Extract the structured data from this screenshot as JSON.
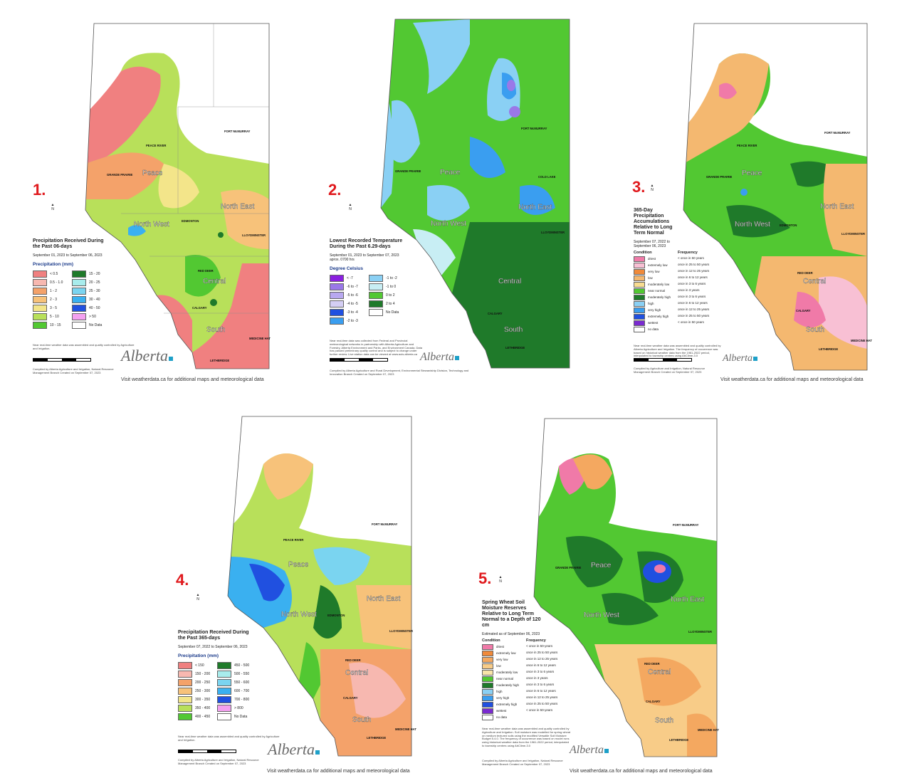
{
  "footer_text": "Visit weatherdata.ca for additional maps and meteorological data",
  "logo_text": "Alberta",
  "regions": [
    "Peace",
    "North West",
    "North East",
    "Central",
    "South"
  ],
  "cities": [
    "PEACE RIVER",
    "GRANDE PRAIRIE",
    "FORT McMURRAY",
    "EDMONTON",
    "LLOYDMINSTER",
    "RED DEER",
    "CALGARY",
    "MEDICINE HAT",
    "LETHBRIDGE",
    "COLD LAKE"
  ],
  "panels": [
    {
      "number": "1.",
      "title": "Precipitation Received During the Past 06-days",
      "dates": "September 01, 2023 to September 06, 2023",
      "legend_title": "Precipitation (mm)",
      "legend": [
        {
          "label": "< 0.5",
          "color": "#f08080"
        },
        {
          "label": "0.5 - 1.0",
          "color": "#f7b8b0"
        },
        {
          "label": "1 - 2",
          "color": "#f4a26a"
        },
        {
          "label": "2 - 3",
          "color": "#f7c27a"
        },
        {
          "label": "3 - 5",
          "color": "#f3e58a"
        },
        {
          "label": "5 - 10",
          "color": "#b8e05a"
        },
        {
          "label": "10 - 15",
          "color": "#52c832"
        },
        {
          "label": "15 - 20",
          "color": "#1f7a2a"
        },
        {
          "label": "20 - 25",
          "color": "#a8ecec"
        },
        {
          "label": "25 - 30",
          "color": "#7ad4f0"
        },
        {
          "label": "30 - 40",
          "color": "#3ab0f0"
        },
        {
          "label": "40 - 50",
          "color": "#2050e0"
        },
        {
          "label": "> 50",
          "color": "#f4a0f0"
        },
        {
          "label": "No Data",
          "color": "#ffffff"
        }
      ],
      "note": "Near real-time weather data was assembled and quality controlled by Agriculture and Irrigation.",
      "credit": "Compiled by Alberta Agriculture and Irrigation, Natural Resource Management Branch Created on September 07, 2023"
    },
    {
      "number": "2.",
      "title": "Lowest Recorded Temperature During the Past 6.29-days",
      "dates": "September 01, 2023 to September 07, 2023 aprox. 0700 hrs",
      "legend_title": "Degree Celsius",
      "legend": [
        {
          "label": "< -7",
          "color": "#8a20e0"
        },
        {
          "label": "-6 to -7",
          "color": "#9a78e8"
        },
        {
          "label": "-5 to -6",
          "color": "#b8a8f0"
        },
        {
          "label": "-4 to -5",
          "color": "#d4cef4"
        },
        {
          "label": "-3 to -4",
          "color": "#2050e0"
        },
        {
          "label": "-2 to -3",
          "color": "#3a9ef0"
        },
        {
          "label": "-1 to -2",
          "color": "#8ad0f4"
        },
        {
          "label": "-1 to 0",
          "color": "#c8eef4"
        },
        {
          "label": "0 to 2",
          "color": "#52c832"
        },
        {
          "label": "2 to 4",
          "color": "#1f7a2a"
        },
        {
          "label": "No Data",
          "color": "#ffffff"
        }
      ],
      "note": "Near real-time data was collected from Federal and Provincial meteorological networks in partnership with Alberta Agriculture and Forestry, Alberta Environment and Parks, and Environment Canada. Data has passed preliminary quality control and is subject to change under further review. Live station data can be viewed at www.acis.alberta.ca",
      "credit": "Compiled by Alberta Agriculture and Rural Development, Environmental Stewardship Division, Technology and Innovation Branch Created on September 07, 2023"
    },
    {
      "number": "3.",
      "title": "365-Day Precipitation Accumulations Relative to Long Term Normal",
      "dates": "September 07, 2022 to September 06, 2023",
      "legend_condition": "Condition",
      "legend_frequency": "Frequency",
      "legend": [
        {
          "label": "driest",
          "freq": "< once in 50 years",
          "color": "#f07aa8"
        },
        {
          "label": "extremely low",
          "freq": "once in 25 to 50 years",
          "color": "#f8c0d4"
        },
        {
          "label": "very low",
          "freq": "once in 12 to 25 years",
          "color": "#f08a3a"
        },
        {
          "label": "low",
          "freq": "once in 6 to 12 years",
          "color": "#f4b870"
        },
        {
          "label": "moderately low",
          "freq": "once in 3 to 6 years",
          "color": "#f8dc90"
        },
        {
          "label": "near normal",
          "freq": "once in 3 years",
          "color": "#52c832"
        },
        {
          "label": "moderately high",
          "freq": "once in 3 to 6 years",
          "color": "#1f7a2a"
        },
        {
          "label": "high",
          "freq": "once in 6 to 12 years",
          "color": "#8ad0f4"
        },
        {
          "label": "very high",
          "freq": "once in 12 to 25 years",
          "color": "#3a9ef0"
        },
        {
          "label": "extremely high",
          "freq": "once in 25 to 50 years",
          "color": "#2050e0"
        },
        {
          "label": "wettest",
          "freq": "< once in 50 years",
          "color": "#7a2ad0"
        },
        {
          "label": "no data",
          "freq": "",
          "color": "#ffffff"
        }
      ],
      "note": "Near real-time weather data was assembled and quality controlled by Alberta Agriculture and Irrigation. The frequency of occurrence was based on historical weather data from the 1961-2022 period, interpolated to township centres using AbClime-3.0",
      "credit": "Compiled by Agriculture and Irrigation, Natural Resource Management Branch Created on September 07, 2023"
    },
    {
      "number": "4.",
      "title": "Precipitation Received During the Past 365-days",
      "dates": "September 07, 2022 to September 06, 2023",
      "legend_title": "Precipitation (mm)",
      "legend": [
        {
          "label": "< 150",
          "color": "#f08080"
        },
        {
          "label": "150 - 200",
          "color": "#f7b8b0"
        },
        {
          "label": "200 - 250",
          "color": "#f4a26a"
        },
        {
          "label": "250 - 300",
          "color": "#f7c27a"
        },
        {
          "label": "300 - 350",
          "color": "#f3e58a"
        },
        {
          "label": "350 - 400",
          "color": "#b8e05a"
        },
        {
          "label": "400 - 450",
          "color": "#52c832"
        },
        {
          "label": "450 - 500",
          "color": "#1f7a2a"
        },
        {
          "label": "500 - 550",
          "color": "#a8ecec"
        },
        {
          "label": "550 - 600",
          "color": "#7ad4f0"
        },
        {
          "label": "600 - 700",
          "color": "#3ab0f0"
        },
        {
          "label": "700 - 800",
          "color": "#2050e0"
        },
        {
          "label": "> 800",
          "color": "#f4a0f0"
        },
        {
          "label": "No Data",
          "color": "#ffffff"
        }
      ],
      "note": "Near real-time weather data was assembled and quality controlled by Agriculture and Irrigation.",
      "credit": "Compiled by Alberta Agriculture and Irrigation, Natural Resource Management Branch Created on September 07, 2023"
    },
    {
      "number": "5.",
      "title": "Spring Wheat Soil Moisture Reserves Relative to Long Term Normal to a Depth of 120 cm",
      "dates": "Estimated as of September 06, 2023",
      "legend_condition": "Condition",
      "legend_frequency": "Frequency",
      "legend": [
        {
          "label": "driest",
          "freq": "< once in 50-years",
          "color": "#f07aa8"
        },
        {
          "label": "extremely low",
          "freq": "once in 25 to 50 years",
          "color": "#f08a3a"
        },
        {
          "label": "very low",
          "freq": "once in 12 to 25 years",
          "color": "#f4a860"
        },
        {
          "label": "low",
          "freq": "once in 6 to 12 years",
          "color": "#f8cc88"
        },
        {
          "label": "moderately low",
          "freq": "once in 3 to 6 years",
          "color": "#f8e4a8"
        },
        {
          "label": "near normal",
          "freq": "once in 3 years",
          "color": "#52c832"
        },
        {
          "label": "moderately high",
          "freq": "once in 3 to 6 years",
          "color": "#1f7a2a"
        },
        {
          "label": "high",
          "freq": "once in 6 to 12 years",
          "color": "#8ad0f4"
        },
        {
          "label": "very high",
          "freq": "once in 12 to 25 years",
          "color": "#3a9ef0"
        },
        {
          "label": "extremely high",
          "freq": "once in 25 to 50 years",
          "color": "#2050e0"
        },
        {
          "label": "wettest",
          "freq": "< once in 50-years",
          "color": "#7a2ad0"
        },
        {
          "label": "no data",
          "freq": "",
          "color": "#ffffff"
        }
      ],
      "note": "Near real-time weather data was assembled and quality controlled by Agriculture and Irrigation. Soil moisture was modelled for spring wheat on medium textured soils using the modified Versatile Soil Moisture Budget 5.4.0. The frequency of occurrence was based on model runs using historical weather data from the 1961-2022 period, interpolated to township centres using AbClime-3.0",
      "credit": "Compiled by Alberta Agriculture and Irrigation, Natural Resource Management Branch Created on September 07, 2023"
    }
  ]
}
